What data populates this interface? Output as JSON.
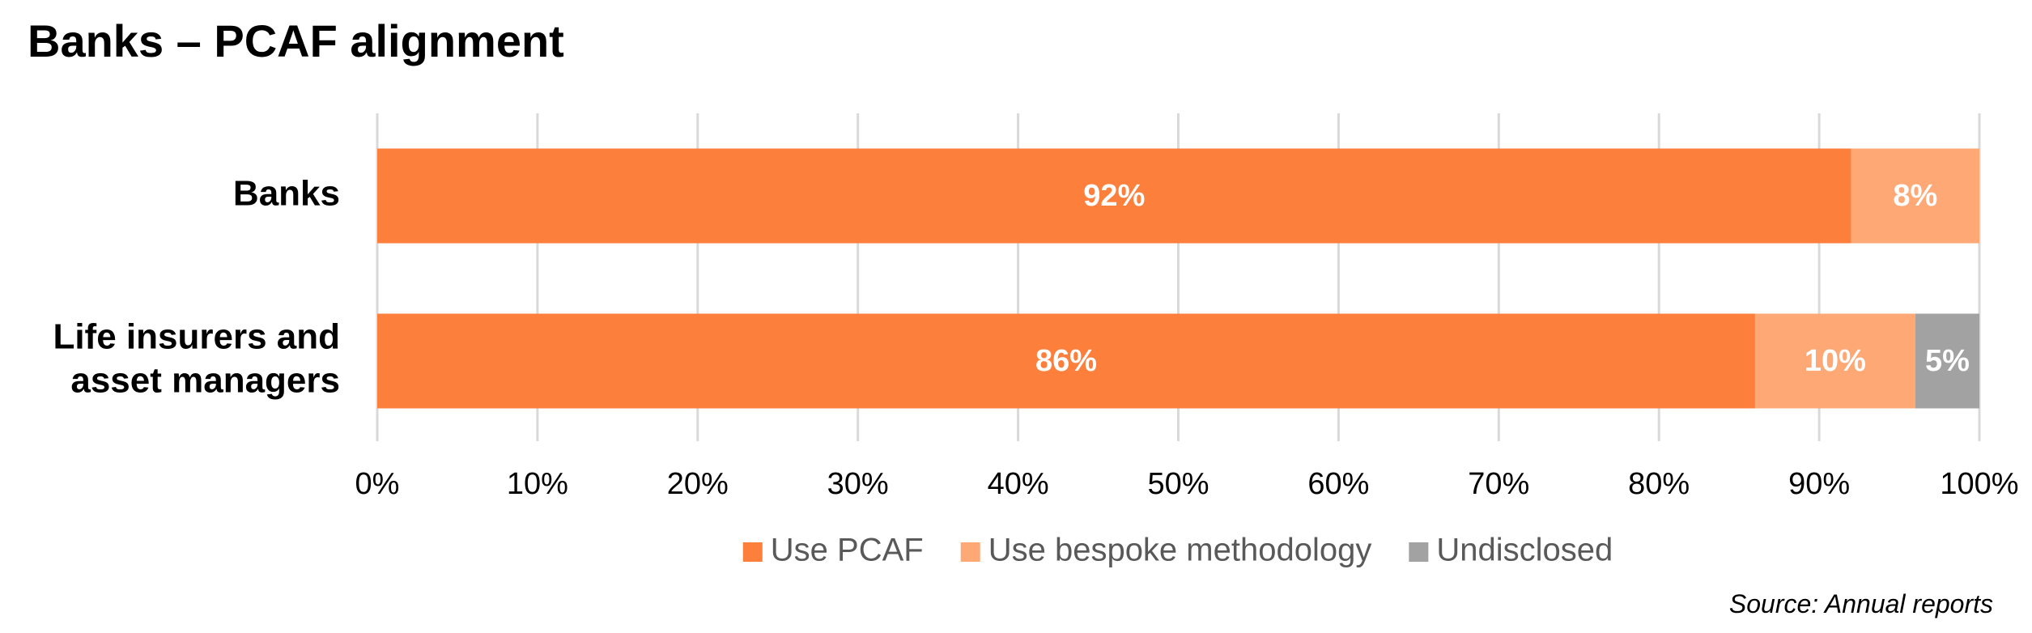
{
  "title": "Banks – PCAF alignment",
  "source": "Source: Annual reports",
  "chart_data": {
    "type": "bar",
    "orientation": "horizontal",
    "stacked": true,
    "categories": [
      "Banks",
      "Life insurers and asset managers"
    ],
    "category_label_lines": [
      [
        "Banks"
      ],
      [
        "Life insurers and",
        "asset managers"
      ]
    ],
    "series": [
      {
        "name": "Use PCAF",
        "color": "#fd7f3c",
        "values": [
          92,
          86
        ],
        "labels": [
          "92%",
          "86%"
        ]
      },
      {
        "name": "Use bespoke methodology",
        "color": "#fda875",
        "values": [
          8,
          10
        ],
        "labels": [
          "8%",
          "10%"
        ]
      },
      {
        "name": "Undisclosed",
        "color": "#a2a2a2",
        "values": [
          0,
          5
        ],
        "labels": [
          "",
          "5%"
        ]
      }
    ],
    "xlim": [
      0,
      100
    ],
    "x_ticks": [
      0,
      10,
      20,
      30,
      40,
      50,
      60,
      70,
      80,
      90,
      100
    ],
    "x_tick_labels": [
      "0%",
      "10%",
      "20%",
      "30%",
      "40%",
      "50%",
      "60%",
      "70%",
      "80%",
      "90%",
      "100%"
    ],
    "xlabel": "",
    "ylabel": "",
    "grid": "vertical",
    "legend_position": "bottom"
  }
}
